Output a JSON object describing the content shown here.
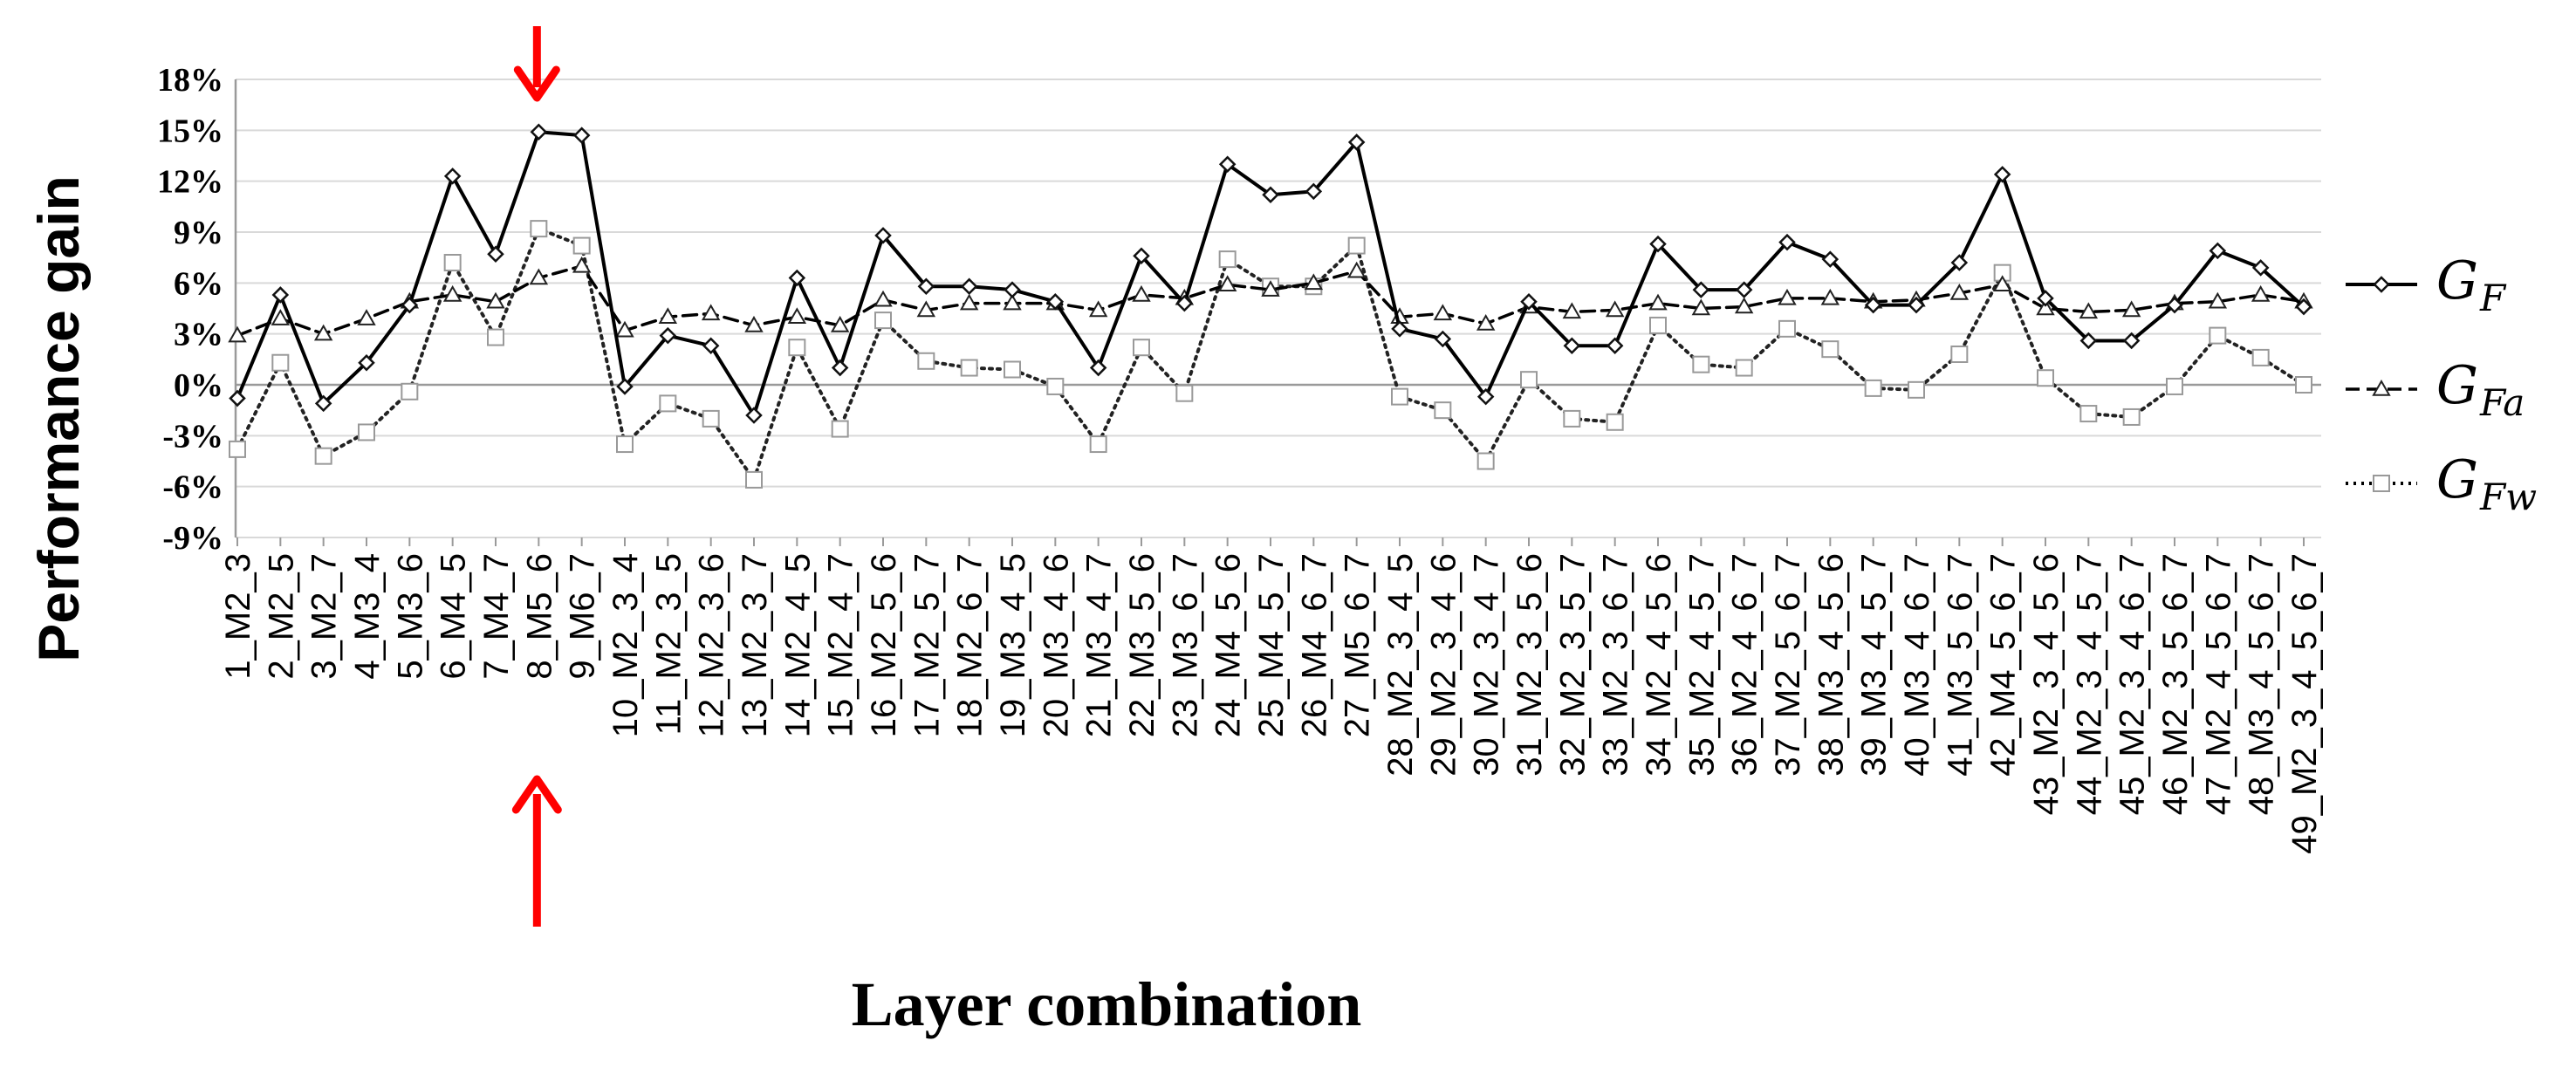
{
  "chart_data": {
    "type": "line",
    "xlabel": "Layer combination",
    "ylabel": "Performance gain",
    "ylim": [
      -9,
      18
    ],
    "y_unit": "%",
    "y_ticks": [
      {
        "value": -9,
        "label": "-9%"
      },
      {
        "value": -6,
        "label": "-6%"
      },
      {
        "value": -3,
        "label": "-3%"
      },
      {
        "value": 0,
        "label": "0%"
      },
      {
        "value": 3,
        "label": "3%"
      },
      {
        "value": 6,
        "label": "6%"
      },
      {
        "value": 9,
        "label": "9%"
      },
      {
        "value": 12,
        "label": "12%"
      },
      {
        "value": 15,
        "label": "15%"
      },
      {
        "value": 18,
        "label": "18%"
      }
    ],
    "grid": "horizontal",
    "legend_position": "right",
    "categories": [
      "1_M2_3",
      "2_M2_5",
      "3_M2_7",
      "4_M3_4",
      "5_M3_6",
      "6_M4_5",
      "7_M4_7",
      "8_M5_6",
      "9_M6_7",
      "10_M2_3_4",
      "11_M2_3_5",
      "12_M2_3_6",
      "13_M2_3_7",
      "14_M2_4_5",
      "15_M2_4_7",
      "16_M2_5_6",
      "17_M2_5_7",
      "18_M2_6_7",
      "19_M3_4_5",
      "20_M3_4_6",
      "21_M3_4_7",
      "22_M3_5_6",
      "23_M3_6_7",
      "24_M4_5_6",
      "25_M4_5_7",
      "26_M4_6_7",
      "27_M5_6_7",
      "28_M2_3_4_5",
      "29_M2_3_4_6",
      "30_M2_3_4_7",
      "31_M2_3_5_6",
      "32_M2_3_5_7",
      "33_M2_3_6_7",
      "34_M2_4_5_6",
      "35_M2_4_5_7",
      "36_M2_4_6_7",
      "37_M2_5_6_7",
      "38_M3_4_5_6",
      "39_M3_4_5_7",
      "40_M3_4_6_7",
      "41_M3_5_6_7",
      "42_M4_5_6_7",
      "43_M2_3_4_5_6",
      "44_M2_3_4_5_7",
      "45_M2_3_4_6_7",
      "46_M2_3_5_6_7",
      "47_M2_4_5_6_7",
      "48_M3_4_5_6_7",
      "49_M2_3_4_5_6_7"
    ],
    "series": [
      {
        "name": "G_F",
        "style": "solid",
        "marker": "diamond",
        "values": [
          -0.8,
          5.3,
          -1.1,
          1.3,
          4.7,
          12.3,
          7.7,
          14.9,
          14.7,
          -0.1,
          2.9,
          2.3,
          -1.8,
          6.3,
          1.0,
          8.8,
          5.8,
          5.8,
          5.6,
          4.9,
          1.0,
          7.6,
          4.8,
          13.0,
          11.2,
          11.4,
          14.3,
          3.3,
          2.7,
          -0.7,
          4.9,
          2.3,
          2.3,
          8.3,
          5.6,
          5.6,
          8.4,
          7.4,
          4.7,
          4.7,
          7.2,
          12.4,
          5.1,
          2.6,
          2.6,
          4.7,
          7.9,
          6.9,
          4.6
        ]
      },
      {
        "name": "G_Fa",
        "style": "dashed",
        "marker": "triangle",
        "values": [
          2.9,
          3.9,
          3.0,
          3.9,
          4.9,
          5.3,
          4.9,
          6.3,
          7.0,
          3.2,
          4.0,
          4.2,
          3.5,
          4.0,
          3.5,
          5.0,
          4.4,
          4.8,
          4.8,
          4.8,
          4.4,
          5.3,
          5.1,
          5.9,
          5.6,
          6.0,
          6.7,
          4.0,
          4.2,
          3.6,
          4.6,
          4.3,
          4.4,
          4.8,
          4.5,
          4.6,
          5.1,
          5.1,
          4.9,
          5.0,
          5.4,
          5.9,
          4.5,
          4.3,
          4.4,
          4.8,
          4.9,
          5.3,
          4.9
        ]
      },
      {
        "name": "G_Fw",
        "style": "dotted",
        "marker": "square",
        "values": [
          -3.8,
          1.3,
          -4.2,
          -2.8,
          -0.4,
          7.2,
          2.8,
          9.2,
          8.2,
          -3.5,
          -1.1,
          -2.0,
          -5.6,
          2.2,
          -2.6,
          3.8,
          1.4,
          1.0,
          0.9,
          -0.1,
          -3.5,
          2.2,
          -0.5,
          7.4,
          5.8,
          5.8,
          8.2,
          -0.7,
          -1.5,
          -4.5,
          0.3,
          -2.0,
          -2.2,
          3.5,
          1.2,
          1.0,
          3.3,
          2.1,
          -0.2,
          -0.3,
          1.8,
          6.6,
          0.4,
          -1.7,
          -1.9,
          -0.1,
          2.9,
          1.6,
          0.0
        ]
      }
    ],
    "legend": [
      {
        "base": "G",
        "sub": "F"
      },
      {
        "base": "G",
        "sub": "Fa"
      },
      {
        "base": "G",
        "sub": "Fw"
      }
    ],
    "annotations": [
      {
        "type": "arrow",
        "color": "#ff0000",
        "direction": "down",
        "target_category": "8_M5_6",
        "placement": "above plot"
      },
      {
        "type": "arrow",
        "color": "#ff0000",
        "direction": "up",
        "target_category": "8_M5_6",
        "placement": "below tick labels"
      }
    ]
  }
}
